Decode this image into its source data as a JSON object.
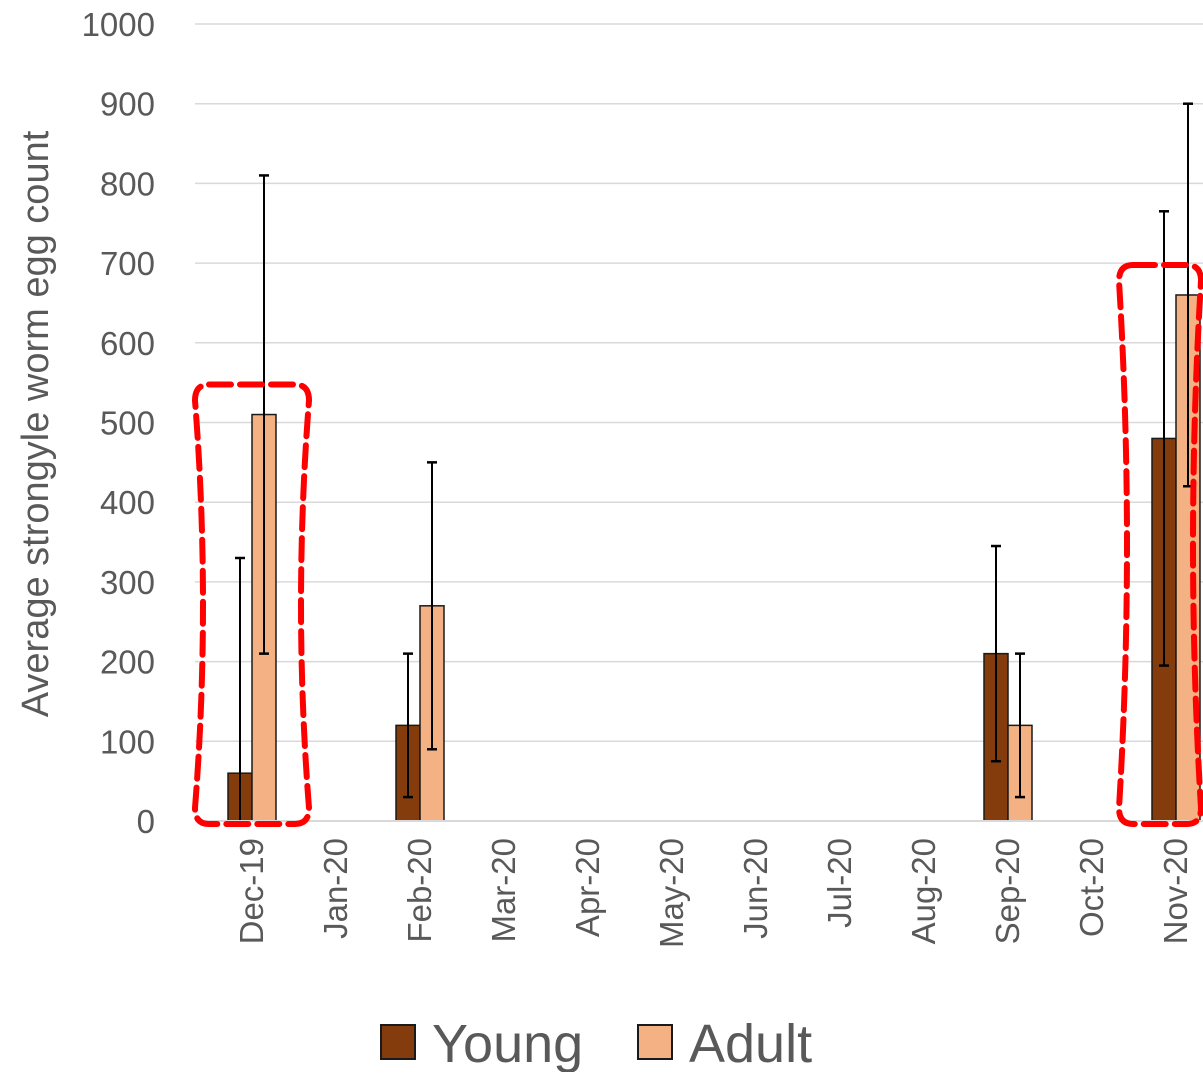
{
  "chart_data": {
    "type": "bar",
    "ylabel": "Average strongyle worm egg count",
    "xlabel": "",
    "ylim": [
      0,
      1000
    ],
    "yticks": [
      0,
      100,
      200,
      300,
      400,
      500,
      600,
      700,
      800,
      900,
      1000
    ],
    "grid": true,
    "legend_position": "bottom",
    "categories": [
      "Dec-19",
      "Jan-20",
      "Feb-20",
      "Mar-20",
      "Apr-20",
      "May-20",
      "Jun-20",
      "Jul-20",
      "Aug-20",
      "Sep-20",
      "Oct-20",
      "Nov-20"
    ],
    "series": [
      {
        "name": "Young",
        "color": "#843c0c",
        "values": [
          60,
          null,
          120,
          null,
          null,
          null,
          null,
          null,
          null,
          210,
          null,
          480
        ],
        "err_low": [
          0,
          null,
          30,
          null,
          null,
          null,
          null,
          null,
          null,
          75,
          null,
          195
        ],
        "err_high": [
          330,
          null,
          210,
          null,
          null,
          null,
          null,
          null,
          null,
          345,
          null,
          765
        ]
      },
      {
        "name": "Adult",
        "color": "#f4b183",
        "values": [
          510,
          null,
          270,
          null,
          null,
          null,
          null,
          null,
          null,
          120,
          null,
          660
        ],
        "err_low": [
          210,
          null,
          90,
          null,
          null,
          null,
          null,
          null,
          null,
          30,
          null,
          420
        ],
        "err_high": [
          810,
          null,
          450,
          null,
          null,
          null,
          null,
          null,
          null,
          210,
          null,
          900
        ]
      }
    ],
    "annotations": [
      {
        "shape": "dashed-rounded-outline",
        "color": "#ff0000",
        "category": "Dec-19"
      },
      {
        "shape": "dashed-rounded-outline",
        "color": "#ff0000",
        "category": "Nov-20"
      }
    ]
  }
}
